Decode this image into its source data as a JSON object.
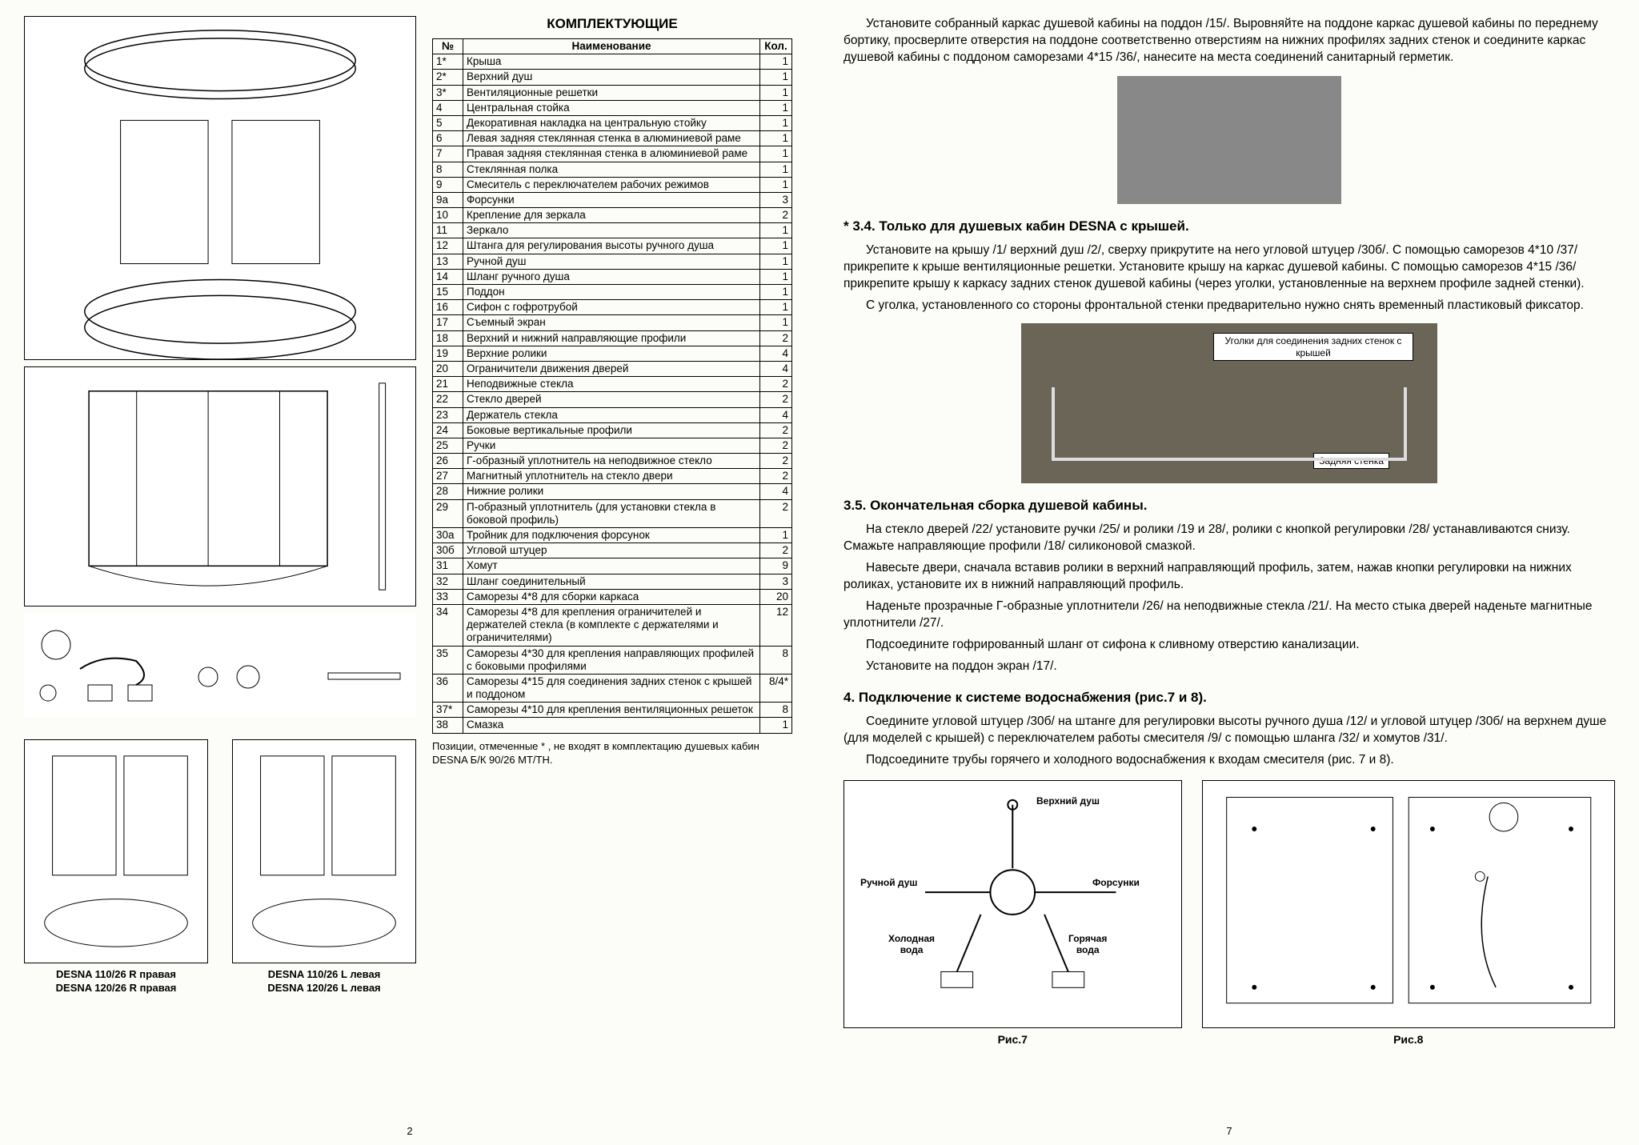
{
  "leftPage": {
    "title": "КОМПЛЕКТУЮЩИЕ",
    "tableHeaders": {
      "num": "№",
      "name": "Наименование",
      "qty": "Кол."
    },
    "rows": [
      {
        "n": "1*",
        "name": "Крыша",
        "q": "1"
      },
      {
        "n": "2*",
        "name": "Верхний душ",
        "q": "1"
      },
      {
        "n": "3*",
        "name": "Вентиляционные решетки",
        "q": "1"
      },
      {
        "n": "4",
        "name": "Центральная стойка",
        "q": "1"
      },
      {
        "n": "5",
        "name": "Декоративная накладка на центральную стойку",
        "q": "1"
      },
      {
        "n": "6",
        "name": "Левая задняя стеклянная стенка в алюминиевой раме",
        "q": "1"
      },
      {
        "n": "7",
        "name": "Правая задняя стеклянная стенка в алюминиевой раме",
        "q": "1"
      },
      {
        "n": "8",
        "name": "Стеклянная полка",
        "q": "1"
      },
      {
        "n": "9",
        "name": "Смеситель с переключателем рабочих режимов",
        "q": "1"
      },
      {
        "n": "9а",
        "name": "Форсунки",
        "q": "3"
      },
      {
        "n": "10",
        "name": "Крепление для зеркала",
        "q": "2"
      },
      {
        "n": "11",
        "name": "Зеркало",
        "q": "1"
      },
      {
        "n": "12",
        "name": "Штанга для регулирования высоты ручного душа",
        "q": "1"
      },
      {
        "n": "13",
        "name": "Ручной душ",
        "q": "1"
      },
      {
        "n": "14",
        "name": "Шланг ручного душа",
        "q": "1"
      },
      {
        "n": "15",
        "name": "Поддон",
        "q": "1"
      },
      {
        "n": "16",
        "name": "Сифон с гофротрубой",
        "q": "1"
      },
      {
        "n": "17",
        "name": "Съемный экран",
        "q": "1"
      },
      {
        "n": "18",
        "name": "Верхний и нижний направляющие профили",
        "q": "2"
      },
      {
        "n": "19",
        "name": "Верхние ролики",
        "q": "4"
      },
      {
        "n": "20",
        "name": "Ограничители движения дверей",
        "q": "4"
      },
      {
        "n": "21",
        "name": "Неподвижные стекла",
        "q": "2"
      },
      {
        "n": "22",
        "name": "Стекло дверей",
        "q": "2"
      },
      {
        "n": "23",
        "name": "Держатель стекла",
        "q": "4"
      },
      {
        "n": "24",
        "name": "Боковые вертикальные профили",
        "q": "2"
      },
      {
        "n": "25",
        "name": "Ручки",
        "q": "2"
      },
      {
        "n": "26",
        "name": "Г-образный уплотнитель на неподвижное стекло",
        "q": "2"
      },
      {
        "n": "27",
        "name": "Магнитный уплотнитель на стекло двери",
        "q": "2"
      },
      {
        "n": "28",
        "name": "Нижние ролики",
        "q": "4"
      },
      {
        "n": "29",
        "name": "П-образный уплотнитель (для установки стекла в боковой профиль)",
        "q": "2"
      },
      {
        "n": "30а",
        "name": "Тройник для подключения форсунок",
        "q": "1"
      },
      {
        "n": "30б",
        "name": "Угловой штуцер",
        "q": "2"
      },
      {
        "n": "31",
        "name": "Хомут",
        "q": "9"
      },
      {
        "n": "32",
        "name": "Шланг соединительный",
        "q": "3"
      },
      {
        "n": "33",
        "name": "Саморезы 4*8 для сборки каркаса",
        "q": "20"
      },
      {
        "n": "34",
        "name": "Саморезы 4*8 для крепления ограничителей и держателей стекла (в комплекте с держателями и ограничителями)",
        "q": "12"
      },
      {
        "n": "35",
        "name": "Саморезы 4*30 для крепления направляющих профилей с боковыми профилями",
        "q": "8"
      },
      {
        "n": "36",
        "name": "Саморезы 4*15 для соединения задних стенок с крышей и поддоном",
        "q": "8/4*"
      },
      {
        "n": "37*",
        "name": "Саморезы 4*10 для крепления вентиляционных решеток",
        "q": "8"
      },
      {
        "n": "38",
        "name": "Смазка",
        "q": "1"
      }
    ],
    "note": "Позиции, отмеченные * , не входят в комплектацию душевых кабин DESNA Б/К 90/26 MT/TH.",
    "leftView": {
      "l1": "DESNA 110/26 R правая",
      "l2": "DESNA 120/26 R правая"
    },
    "rightView": {
      "l1": "DESNA 110/26 L левая",
      "l2": "DESNA 120/26 L левая"
    },
    "pageNum": "2"
  },
  "rightPage": {
    "p1": "Установите собранный каркас душевой кабины на поддон /15/. Выровняйте на поддоне каркас душевой кабины по переднему бортику, просверлите отверстия на поддоне соответственно отверстиям на нижних профилях задних стенок и соедините каркас душевой кабины с поддоном саморезами 4*15 /36/, нанесите на места соединений санитарный герметик.",
    "h34": "* 3.4. Только для душевых кабин DESNA с крышей.",
    "p34a": "Установите на крышу /1/ верхний душ /2/, сверху прикрутите на него угловой штуцер /30б/. С помощью саморезов 4*10 /37/ прикрепите к крыше вентиляционные решетки. Установите крышу на каркас душевой кабины. С помощью саморезов 4*15 /36/ прикрепите крышу к каркасу задних стенок душевой кабины (через уголки, установленные на верхнем профиле задней стенки).",
    "p34b": "С уголка, установленного со стороны фронтальной стенки предварительно нужно снять временный пластиковый фиксатор.",
    "annot1": "Уголки для соединения задних стенок с крышей",
    "annot2": "Задняя стенка",
    "h35": "3.5. Окончательная сборка душевой кабины.",
    "p35a": "На стекло дверей /22/ установите ручки /25/ и ролики /19 и 28/, ролики с кнопкой регулировки /28/ устанавливаются снизу. Смажьте направляющие профили /18/ силиконовой смазкой.",
    "p35b": "Навесьте двери, сначала вставив ролики в верхний направляющий профиль, затем, нажав кнопки регулировки на нижних роликах, установите их в нижний направляющий профиль.",
    "p35c": "Наденьте прозрачные Г-образные уплотнители /26/ на неподвижные стекла /21/. На место стыка дверей наденьте магнитные уплотнители /27/.",
    "p35d": "Подсоедините гофрированный шланг от сифона к сливному отверстию канализации.",
    "p35e": "Установите на поддон экран /17/.",
    "h4": "4. Подключение к системе водоснабжения (рис.7 и 8).",
    "p4a": "Соедините угловой штуцер /30б/ на штанге для регулировки высоты ручного душа /12/ и угловой штуцер /30б/ на верхнем душе (для моделей с крышей) с переключателем работы смесителя /9/ с помощью шланга /32/ и хомутов /31/.",
    "p4b": "Подсоедините трубы горячего и холодного водоснабжения к входам смесителя (рис. 7 и 8).",
    "fig7": {
      "label": "Рис.7",
      "labels": {
        "top": "Верхний душ",
        "left": "Ручной душ",
        "right": "Форсунки",
        "cold": "Холодная\nвода",
        "hot": "Горячая\nвода"
      }
    },
    "fig8": {
      "label": "Рис.8"
    },
    "pageNum": "7"
  }
}
